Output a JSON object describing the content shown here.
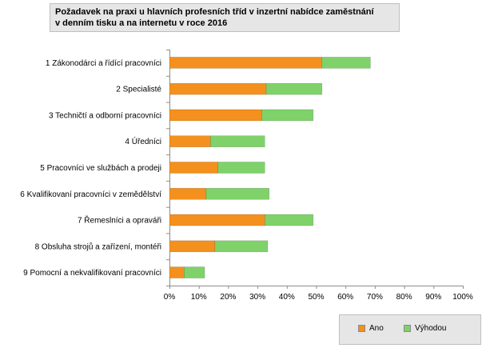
{
  "chart_data": {
    "type": "bar",
    "stacked": true,
    "orientation": "horizontal",
    "title": "Požadavek na praxi u hlavních profesních tříd v inzertní nabídce zaměstnání v denním tisku a na internetu v roce 2016",
    "title_lines": [
      "Požadavek na praxi u hlavních profesních tříd v inzertní nabídce zaměstnání",
      "v denním tisku a na internetu v roce 2016"
    ],
    "categories": [
      "1 Zákonodárci a řídící pracovníci",
      "2 Specialisté",
      "3 Techničtí a odborní pracovníci",
      "4 Úředníci",
      "5 Pracovníci ve službách a prodeji",
      "6 Kvalifikovaní pracovníci v zemědělství",
      "7 Řemeslníci a opraváři",
      "8 Obsluha strojů a zařízení, montéři",
      "9 Pomocní a nekvalifikovaní pracovníci"
    ],
    "series": [
      {
        "name": "Ano",
        "color": "#f4901e",
        "values": [
          52,
          33,
          31.5,
          14,
          16.5,
          12.5,
          32.5,
          15.5,
          5
        ]
      },
      {
        "name": "Výhodou",
        "color": "#7fd26a",
        "values": [
          16.5,
          19,
          17.5,
          18.5,
          16,
          21.5,
          16.5,
          18,
          7
        ]
      }
    ],
    "xlim": [
      0,
      100
    ],
    "x_ticks": [
      "0%",
      "10%",
      "20%",
      "30%",
      "40%",
      "50%",
      "60%",
      "70%",
      "80%",
      "90%",
      "100%"
    ],
    "xlabel": "",
    "ylabel": "",
    "grid": false,
    "legend_position": "bottom-right"
  }
}
